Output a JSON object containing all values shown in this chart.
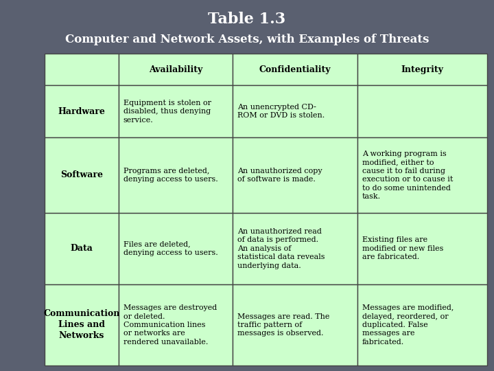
{
  "title": "Table 1.3",
  "subtitle": "Computer and Network Assets, with Examples of Threats",
  "title_color": "#ffffff",
  "bg_color": "#5a6070",
  "cell_bg": "#ccffcc",
  "border_color": "#444444",
  "col_headers": [
    "",
    "Availability",
    "Confidentiality",
    "Integrity"
  ],
  "row_headers": [
    "Hardware",
    "Software",
    "Data",
    "Communication\nLines and\nNetworks"
  ],
  "cells": [
    [
      "Equipment is stolen or\ndisabled, thus denying\nservice.",
      "An unencrypted CD-\nROM or DVD is stolen.",
      ""
    ],
    [
      "Programs are deleted,\ndenying access to users.",
      "An unauthorized copy\nof software is made.",
      "A working program is\nmodified, either to\ncause it to fail during\nexecution or to cause it\nto do some unintended\ntask."
    ],
    [
      "Files are deleted,\ndenying access to users.",
      "An unauthorized read\nof data is performed.\nAn analysis of\nstatistical data reveals\nunderlying data.",
      "Existing files are\nmodified or new files\nare fabricated."
    ],
    [
      "Messages are destroyed\nor deleted.\nCommunication lines\nor networks are\nrendered unavailable.",
      "Messages are read. The\ntraffic pattern of\nmessages is observed.",
      "Messages are modified,\ndelayed, reordered, or\nduplicated. False\nmessages are\nfabricated."
    ]
  ],
  "title_fontsize": 16,
  "subtitle_fontsize": 12,
  "header_fontsize": 9,
  "cell_fontsize": 8,
  "row_header_fontsize": 9
}
